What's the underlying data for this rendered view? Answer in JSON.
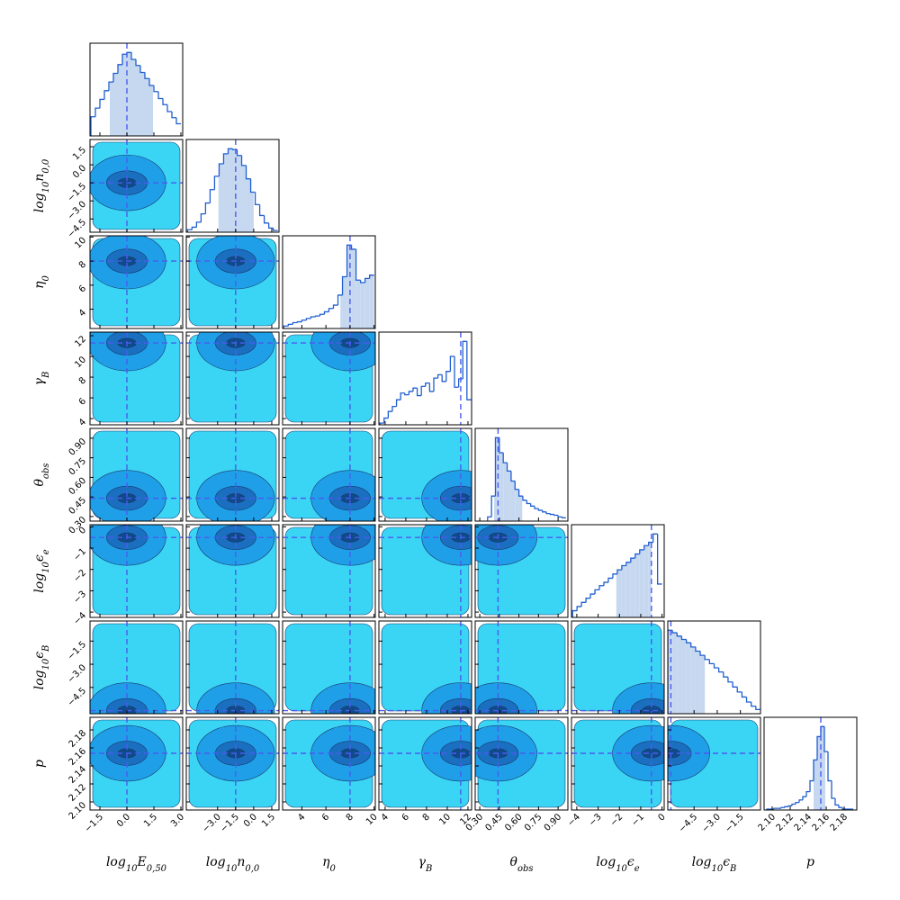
{
  "chart_data": {
    "type": "corner",
    "hist_color": "#1f5fd0",
    "interval_color": "#c6d8f0",
    "truth_color": "#4a5cf0",
    "contour_colors": [
      "#3ad4f5",
      "#1f9fe8",
      "#1a6fc0",
      "#0f4a8a"
    ],
    "parameters": [
      {
        "label": [
          {
            "text": "log"
          },
          {
            "text": "10",
            "sub": true
          },
          {
            "text": "E"
          },
          {
            "text": "0,50",
            "sub": true
          }
        ],
        "xlim": [
          -2.05,
          3.1
        ],
        "xticks": [
          {
            "value": -1.5,
            "label": "−1.5"
          },
          {
            "value": 0,
            "label": "0.0"
          },
          1.5,
          {
            "value": 3,
            "label": "3.0"
          }
        ],
        "truth": 0.0,
        "interval": [
          -0.95,
          1.45
        ],
        "bins": [
          -2.0,
          -1.75,
          -1.5,
          -1.25,
          -1.0,
          -0.75,
          -0.5,
          -0.25,
          0.0,
          0.25,
          0.5,
          0.75,
          1.0,
          1.25,
          1.5,
          1.75,
          2.0,
          2.25,
          2.5,
          2.75,
          3.0
        ],
        "counts": [
          22,
          32,
          42,
          52,
          62,
          72,
          82,
          94,
          96,
          88,
          81,
          73,
          66,
          58,
          51,
          43,
          36,
          28,
          21,
          14
        ]
      },
      {
        "label": [
          {
            "text": "log"
          },
          {
            "text": "10",
            "sub": true
          },
          {
            "text": "n"
          },
          {
            "text": "0,0",
            "sub": true
          }
        ],
        "xlim": [
          -5.6,
          2.1
        ],
        "xticks": [
          {
            "value": -3,
            "label": "−3.0"
          },
          {
            "value": -1.5,
            "label": "−1.5"
          },
          {
            "value": 0,
            "label": "0.0"
          },
          1.5
        ],
        "yticks": [
          {
            "value": -4.5,
            "label": "−4.5"
          },
          {
            "value": -3,
            "label": "−3.0"
          },
          {
            "value": -1.5,
            "label": "−1.5"
          },
          {
            "value": 0,
            "label": "0.0"
          },
          1.5
        ],
        "truth": -1.5,
        "interval": [
          -2.93,
          0.0
        ],
        "bins": [
          -5.5,
          -5.125,
          -4.75,
          -4.375,
          -4.0,
          -3.625,
          -3.25,
          -2.875,
          -2.5,
          -2.125,
          -1.75,
          -1.375,
          -1.0,
          -0.625,
          -0.25,
          0.125,
          0.5,
          0.875,
          1.25,
          1.625,
          2.0
        ],
        "counts": [
          3,
          6,
          12,
          22,
          35,
          51,
          67,
          82,
          94,
          100,
          99,
          92,
          80,
          64,
          48,
          33,
          20,
          11,
          5,
          2
        ]
      },
      {
        "label": [
          {
            "text": "η"
          },
          {
            "text": "0",
            "sub": true
          }
        ],
        "xlim": [
          2.4,
          10.1
        ],
        "xticks": [
          4,
          6,
          8,
          10
        ],
        "truth": 8,
        "interval": [
          7.2,
          10.1
        ],
        "bins": [
          2.5,
          2.875,
          3.25,
          3.625,
          4.0,
          4.375,
          4.75,
          5.125,
          5.5,
          5.875,
          6.25,
          6.625,
          7.0,
          7.375,
          7.75,
          8.125,
          8.5,
          8.875,
          9.25,
          9.625,
          10.0
        ],
        "counts": [
          3,
          5,
          7,
          8,
          10,
          12,
          14,
          15,
          17,
          20,
          24,
          28,
          40,
          62,
          100,
          95,
          58,
          55,
          60,
          64
        ]
      },
      {
        "label": [
          {
            "text": "γ"
          },
          {
            "text": "B",
            "sub": true
          }
        ],
        "xlim": [
          3.4,
          12.35
        ],
        "xticks": [
          4,
          6,
          8,
          10,
          12
        ],
        "truth": 11.3,
        "bins": [
          3.5,
          3.9,
          4.3,
          4.7,
          5.1,
          5.5,
          5.9,
          6.3,
          6.7,
          7.1,
          7.5,
          7.9,
          8.3,
          8.7,
          9.1,
          9.5,
          9.9,
          10.3,
          10.7,
          11.1,
          11.5,
          11.9,
          12.3
        ],
        "counts": [
          2,
          8,
          16,
          22,
          30,
          38,
          36,
          40,
          44,
          35,
          46,
          50,
          40,
          56,
          60,
          52,
          64,
          82,
          45,
          55,
          100,
          30
        ]
      },
      {
        "label": [
          {
            "text": "θ"
          },
          {
            "text": "obs",
            "sub": true
          }
        ],
        "xlim": [
          0.265,
          0.975
        ],
        "xticks": [
          {
            "value": 0.3,
            "label": "0.30"
          },
          0.45,
          {
            "value": 0.6,
            "label": "0.60"
          },
          0.75,
          {
            "value": 0.9,
            "label": "0.90"
          }
        ],
        "truth": 0.44,
        "interval": [
          0.41,
          0.625
        ],
        "bins": [
          0.36,
          0.39,
          0.42,
          0.45,
          0.48,
          0.51,
          0.54,
          0.57,
          0.6,
          0.63,
          0.66,
          0.69,
          0.72,
          0.75,
          0.78,
          0.81,
          0.84,
          0.87,
          0.9,
          0.93,
          0.96
        ],
        "counts": [
          5,
          30,
          100,
          82,
          70,
          60,
          48,
          38,
          30,
          25,
          21,
          18,
          15,
          13,
          11,
          9,
          8,
          7,
          5,
          4
        ]
      },
      {
        "label": [
          {
            "text": "log"
          },
          {
            "text": "10",
            "sub": true
          },
          {
            "text": "ϵ"
          },
          {
            "text": "e",
            "sub": true
          }
        ],
        "xlim": [
          -4.25,
          0.1
        ],
        "xticks": [
          {
            "value": -4,
            "label": "−4"
          },
          {
            "value": -3,
            "label": "−3"
          },
          {
            "value": -2,
            "label": "−2"
          },
          {
            "value": -1,
            "label": "−1"
          },
          0
        ],
        "truth": -0.5,
        "interval": [
          -2.15,
          -0.5
        ],
        "bins": [
          -4.2,
          -3.99,
          -3.78,
          -3.57,
          -3.36,
          -3.15,
          -2.94,
          -2.73,
          -2.52,
          -2.31,
          -2.1,
          -1.89,
          -1.68,
          -1.47,
          -1.26,
          -1.05,
          -0.84,
          -0.63,
          -0.42,
          -0.21,
          0.0
        ],
        "counts": [
          8,
          13,
          18,
          23,
          28,
          33,
          38,
          42,
          47,
          52,
          57,
          62,
          66,
          71,
          76,
          81,
          86,
          90,
          100,
          40
        ]
      },
      {
        "label": [
          {
            "text": "log"
          },
          {
            "text": "10",
            "sub": true
          },
          {
            "text": "ϵ"
          },
          {
            "text": "B",
            "sub": true
          }
        ],
        "xlim": [
          -6.2,
          -0.2
        ],
        "xticks": [
          {
            "value": -4.5,
            "label": "−4.5"
          },
          {
            "value": -3,
            "label": "−3.0"
          },
          {
            "value": -1.5,
            "label": "−1.5"
          }
        ],
        "truth": -6.0,
        "interval": [
          -6.2,
          -3.8
        ],
        "bins": [
          -6.2,
          -5.9,
          -5.6,
          -5.3,
          -5.0,
          -4.7,
          -4.4,
          -4.1,
          -3.8,
          -3.5,
          -3.2,
          -2.9,
          -2.6,
          -2.3,
          -2.0,
          -1.7,
          -1.4,
          -1.1,
          -0.8,
          -0.5,
          -0.2
        ],
        "counts": [
          100,
          97,
          93,
          89,
          85,
          80,
          75,
          70,
          65,
          60,
          55,
          50,
          44,
          38,
          32,
          26,
          20,
          14,
          9,
          5
        ]
      },
      {
        "label": [
          {
            "text": "p"
          }
        ],
        "xlim": [
          2.091,
          2.194
        ],
        "xticks": [
          {
            "value": 2.1,
            "label": "2.10"
          },
          2.12,
          2.14,
          2.16,
          2.18
        ],
        "truth": 2.154,
        "interval": [
          2.146,
          2.159
        ],
        "bins": [
          2.094,
          2.098,
          2.102,
          2.106,
          2.11,
          2.114,
          2.118,
          2.122,
          2.126,
          2.13,
          2.134,
          2.138,
          2.142,
          2.146,
          2.15,
          2.154,
          2.158,
          2.162,
          2.166,
          2.17,
          2.174,
          2.178,
          2.182,
          2.186,
          2.19
        ],
        "counts": [
          1,
          1,
          2,
          2,
          3,
          4,
          5,
          7,
          9,
          12,
          16,
          22,
          35,
          60,
          88,
          100,
          70,
          35,
          14,
          6,
          3,
          1,
          1,
          1
        ]
      }
    ]
  }
}
